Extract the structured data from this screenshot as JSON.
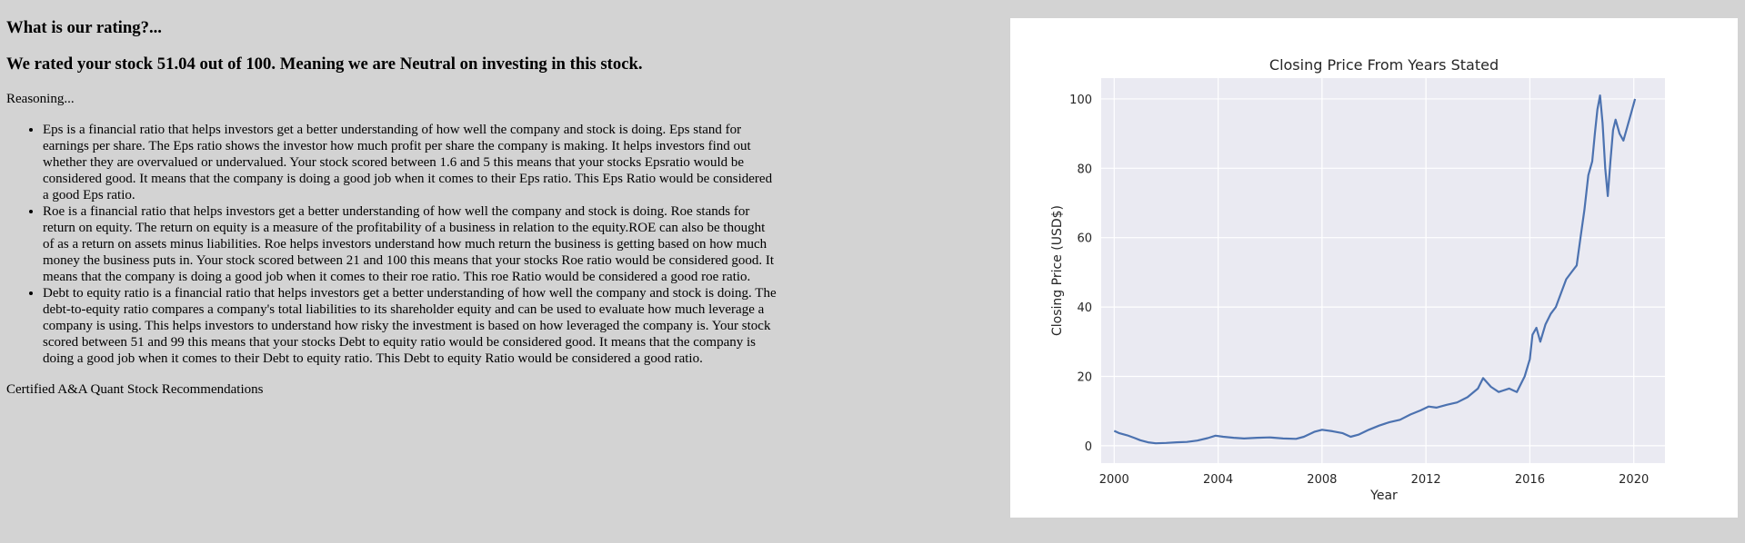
{
  "rating": {
    "question": "What is our rating?...",
    "headline": "We rated your stock 51.04 out of 100. Meaning we are Neutral on investing in this stock."
  },
  "reasoning": {
    "label": "Reasoning...",
    "items": [
      "Eps is a financial ratio that helps investors get a better understanding of how well the company and stock is doing. Eps stand for earnings per share. The Eps ratio shows the investor how much profit per share the company is making. It helps investors find out whether they are overvalued or undervalued. Your stock scored between 1.6 and 5 this means that your stocks Epsratio would be considered good. It means that the company is doing a good job when it comes to their Eps ratio. This Eps Ratio would be considered a good Eps ratio.",
      "Roe is a financial ratio that helps investors get a better understanding of how well the company and stock is doing. Roe stands for return on equity. The return on equity is a measure of the profitability of a business in relation to the equity.ROE can also be thought of as a return on assets minus liabilities. Roe helps investors understand how much return the business is getting based on how much money the business puts in. Your stock scored between 21 and 100 this means that your stocks Roe ratio would be considered good. It means that the company is doing a good job when it comes to their roe ratio. This roe Ratio would be considered a good roe ratio.",
      "Debt to equity ratio is a financial ratio that helps investors get a better understanding of how well the company and stock is doing. The debt-to-equity ratio compares a company's total liabilities to its shareholder equity and can be used to evaluate how much leverage a company is using. This helps investors to understand how risky the investment is based on how leveraged the company is. Your stock scored between 51 and 99 this means that your stocks Debt to equity ratio would be considered good. It means that the company is doing a good job when it comes to their Debt to equity ratio. This Debt to equity Ratio would be considered a good ratio."
    ]
  },
  "footer": {
    "certified": "Certified A&A Quant Stock Recommendations"
  },
  "chart_data": {
    "type": "line",
    "title": "Closing Price From Years Stated",
    "xlabel": "Year",
    "ylabel": "Closing Price (USD$)",
    "xlim": [
      1999.5,
      2021.2
    ],
    "ylim": [
      -5,
      106
    ],
    "xticks": [
      2000,
      2004,
      2008,
      2012,
      2016,
      2020
    ],
    "yticks": [
      0,
      20,
      40,
      60,
      80,
      100
    ],
    "grid": true,
    "line_color": "#4c72b0",
    "plot_bg": "#eaeaf2",
    "series": [
      {
        "x": [
          2000.0,
          2000.2,
          2000.5,
          2000.8,
          2001.0,
          2001.3,
          2001.6,
          2002.0,
          2002.4,
          2002.8,
          2003.2,
          2003.6,
          2003.9,
          2004.2,
          2004.6,
          2005.0,
          2005.5,
          2006.0,
          2006.5,
          2007.0,
          2007.3,
          2007.7,
          2008.0,
          2008.4,
          2008.8,
          2009.1,
          2009.4,
          2009.8,
          2010.2,
          2010.6,
          2011.0,
          2011.4,
          2011.8,
          2012.1,
          2012.4,
          2012.8,
          2013.2,
          2013.6,
          2014.0,
          2014.2,
          2014.5,
          2014.8,
          2015.2,
          2015.5,
          2015.8,
          2016.0,
          2016.1,
          2016.25,
          2016.4,
          2016.6,
          2016.8,
          2017.0,
          2017.2,
          2017.4,
          2017.6,
          2017.8,
          2017.95,
          2018.1,
          2018.25,
          2018.4,
          2018.5,
          2018.6,
          2018.7,
          2018.8,
          2018.9,
          2019.0,
          2019.1,
          2019.2,
          2019.3,
          2019.45,
          2019.6,
          2019.75,
          2019.9,
          2020.05
        ],
        "y": [
          4.3,
          3.6,
          3.0,
          2.2,
          1.6,
          1.0,
          0.7,
          0.8,
          1.0,
          1.1,
          1.5,
          2.2,
          2.9,
          2.6,
          2.3,
          2.1,
          2.3,
          2.4,
          2.1,
          2.0,
          2.6,
          4.0,
          4.6,
          4.2,
          3.6,
          2.6,
          3.2,
          4.6,
          5.8,
          6.8,
          7.5,
          9.0,
          10.2,
          11.3,
          11.0,
          11.8,
          12.5,
          14.0,
          16.5,
          19.5,
          17.0,
          15.5,
          16.5,
          15.5,
          20.0,
          25.0,
          32.0,
          34.0,
          30.0,
          35.0,
          38.0,
          40.0,
          44.0,
          48.0,
          50.0,
          52.0,
          60.0,
          68.0,
          78.0,
          82.0,
          90.0,
          97.0,
          101.0,
          93.0,
          80.0,
          72.0,
          82.0,
          91.0,
          94.0,
          90.0,
          88.0,
          92.0,
          96.0,
          100.0
        ]
      }
    ]
  }
}
